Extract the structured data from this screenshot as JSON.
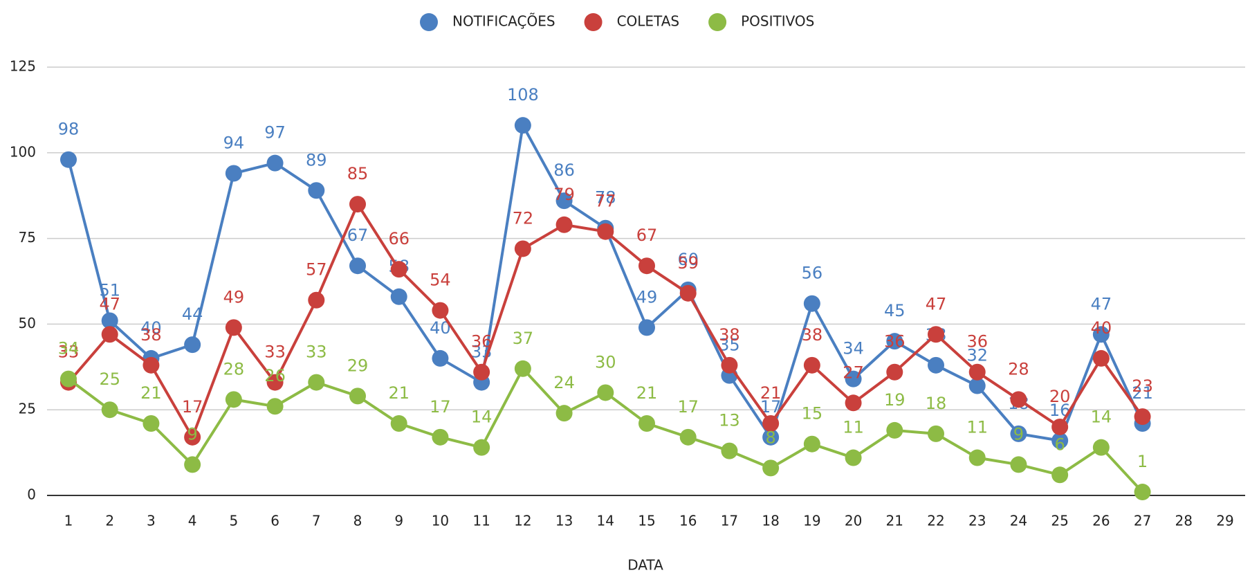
{
  "chart_data": {
    "type": "line",
    "x_label": "DATA",
    "categories": [
      "1",
      "2",
      "3",
      "4",
      "5",
      "6",
      "7",
      "8",
      "9",
      "10",
      "11",
      "12",
      "13",
      "14",
      "15",
      "16",
      "17",
      "18",
      "19",
      "20",
      "21",
      "22",
      "23",
      "24",
      "25",
      "26",
      "27",
      "28",
      "29"
    ],
    "series": [
      {
        "name": "NOTIFICAÇÕES",
        "color": "#4a7fc1",
        "values": [
          98,
          51,
          40,
          44,
          94,
          97,
          89,
          67,
          58,
          40,
          33,
          108,
          86,
          78,
          49,
          60,
          35,
          17,
          56,
          34,
          45,
          38,
          32,
          18,
          16,
          47,
          21,
          null,
          null
        ]
      },
      {
        "name": "COLETAS",
        "color": "#c9403c",
        "values": [
          33,
          47,
          38,
          17,
          49,
          33,
          57,
          85,
          66,
          54,
          36,
          72,
          79,
          77,
          67,
          59,
          38,
          21,
          38,
          27,
          36,
          47,
          36,
          28,
          20,
          40,
          23,
          null,
          null
        ]
      },
      {
        "name": "POSITIVOS",
        "color": "#8dbb45",
        "values": [
          34,
          25,
          21,
          9,
          28,
          26,
          33,
          29,
          21,
          17,
          14,
          37,
          24,
          30,
          21,
          17,
          13,
          8,
          15,
          11,
          19,
          18,
          11,
          9,
          6,
          14,
          1,
          null,
          null
        ]
      }
    ],
    "ylim": [
      0,
      125
    ],
    "yticks": [
      0,
      25,
      50,
      75,
      100,
      125
    ],
    "grid": true,
    "legend": "top"
  }
}
